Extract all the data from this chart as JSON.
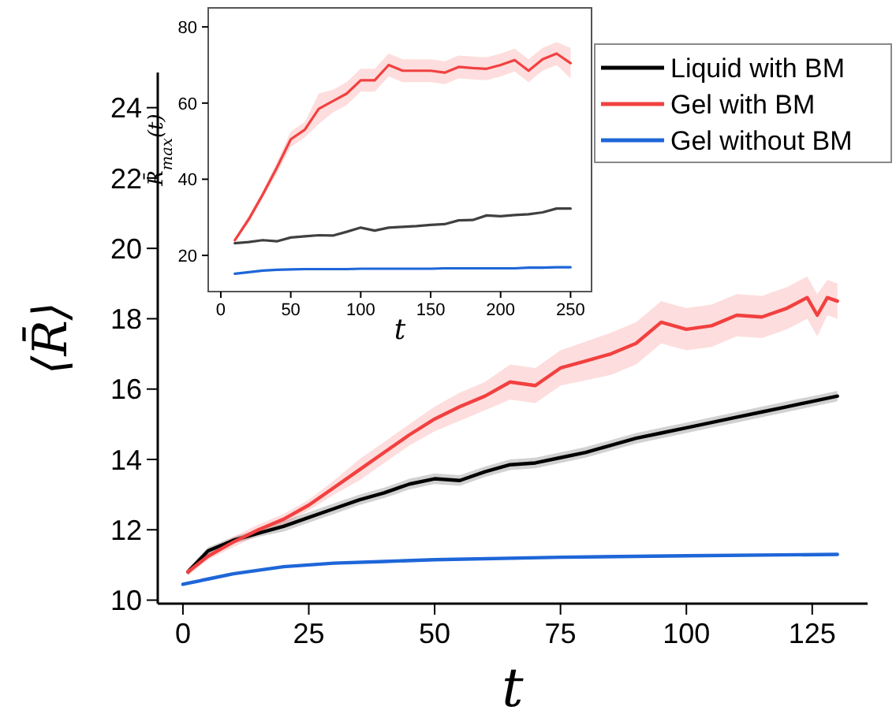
{
  "chart_data": [
    {
      "type": "line",
      "xlabel": "t",
      "ylabel": "⟨R̄⟩",
      "xlim": [
        -5,
        136
      ],
      "ylim": [
        9.9,
        25
      ],
      "xticks": [
        0,
        25,
        50,
        75,
        100,
        125
      ],
      "yticks": [
        10,
        12,
        14,
        16,
        18,
        20,
        22,
        24
      ],
      "legend": "top right",
      "grid": false,
      "marker": "none",
      "line_style": "solid",
      "series": [
        {
          "name": "Liquid with BM",
          "color": "#000000",
          "x": [
            1,
            5,
            10,
            15,
            20,
            25,
            30,
            35,
            40,
            45,
            50,
            55,
            60,
            65,
            70,
            75,
            80,
            85,
            90,
            95,
            100,
            105,
            110,
            115,
            120,
            125,
            130
          ],
          "values": [
            10.8,
            11.4,
            11.7,
            11.9,
            12.1,
            12.35,
            12.6,
            12.85,
            13.05,
            13.3,
            13.45,
            13.4,
            13.65,
            13.85,
            13.9,
            14.05,
            14.2,
            14.4,
            14.6,
            14.75,
            14.9,
            15.05,
            15.2,
            15.35,
            15.5,
            15.65,
            15.8
          ],
          "lower": [
            10.7,
            11.3,
            11.6,
            11.8,
            11.95,
            12.2,
            12.45,
            12.7,
            12.9,
            13.15,
            13.3,
            13.25,
            13.5,
            13.7,
            13.75,
            13.9,
            14.05,
            14.25,
            14.45,
            14.6,
            14.75,
            14.9,
            15.05,
            15.2,
            15.35,
            15.5,
            15.65
          ],
          "upper": [
            10.9,
            11.5,
            11.8,
            12.0,
            12.25,
            12.5,
            12.75,
            13.0,
            13.2,
            13.45,
            13.6,
            13.55,
            13.8,
            14.0,
            14.05,
            14.2,
            14.35,
            14.55,
            14.75,
            14.9,
            15.05,
            15.2,
            15.35,
            15.5,
            15.65,
            15.8,
            15.95
          ]
        },
        {
          "name": "Gel with BM",
          "color": "#f24040",
          "x": [
            1,
            5,
            10,
            15,
            20,
            25,
            30,
            35,
            40,
            45,
            50,
            55,
            60,
            65,
            70,
            75,
            80,
            85,
            90,
            95,
            100,
            105,
            110,
            115,
            120,
            124,
            126,
            128,
            130
          ],
          "values": [
            10.8,
            11.25,
            11.65,
            12.0,
            12.3,
            12.7,
            13.2,
            13.7,
            14.2,
            14.7,
            15.15,
            15.5,
            15.8,
            16.2,
            16.1,
            16.6,
            16.8,
            17.0,
            17.3,
            17.9,
            17.7,
            17.8,
            18.1,
            18.05,
            18.3,
            18.6,
            18.1,
            18.6,
            18.5
          ],
          "lower": [
            10.7,
            11.15,
            11.5,
            11.85,
            12.15,
            12.55,
            13.0,
            13.4,
            13.9,
            14.4,
            14.8,
            15.1,
            15.4,
            15.7,
            15.6,
            16.1,
            16.25,
            16.4,
            16.7,
            17.3,
            17.1,
            17.2,
            17.5,
            17.45,
            17.7,
            18.0,
            17.5,
            18.1,
            18.0
          ],
          "upper": [
            10.9,
            11.35,
            11.8,
            12.15,
            12.45,
            12.85,
            13.4,
            14.0,
            14.5,
            15.0,
            15.5,
            15.9,
            16.2,
            16.7,
            16.6,
            17.1,
            17.35,
            17.6,
            17.9,
            18.5,
            18.3,
            18.4,
            18.7,
            18.65,
            18.9,
            19.2,
            18.7,
            19.1,
            19.0
          ]
        },
        {
          "name": "Gel without BM",
          "color": "#1e66d8",
          "x": [
            0,
            5,
            10,
            15,
            20,
            30,
            40,
            50,
            75,
            100,
            130
          ],
          "values": [
            10.45,
            10.6,
            10.75,
            10.85,
            10.95,
            11.05,
            11.1,
            11.15,
            11.22,
            11.26,
            11.3
          ]
        }
      ]
    },
    {
      "type": "line",
      "xlabel": "t",
      "ylabel": "R̄$_{max}$(t)",
      "xlim": [
        -9,
        265
      ],
      "ylim": [
        10.5,
        85
      ],
      "xticks": [
        0,
        50,
        100,
        150,
        200,
        250
      ],
      "yticks": [
        20,
        40,
        60,
        80
      ],
      "legend": false,
      "grid": false,
      "marker": "none",
      "line_style": "solid",
      "series": [
        {
          "color": "#404040",
          "x": [
            10,
            20,
            30,
            40,
            50,
            60,
            70,
            80,
            90,
            100,
            110,
            120,
            130,
            140,
            150,
            160,
            170,
            180,
            190,
            200,
            210,
            220,
            230,
            240,
            250
          ],
          "values": [
            23.2,
            23.5,
            24,
            23.7,
            24.7,
            25,
            25.3,
            25.2,
            26.2,
            27.3,
            26.5,
            27.3,
            27.5,
            27.7,
            28,
            28.2,
            29.2,
            29.3,
            30.5,
            30.3,
            30.6,
            30.8,
            31.3,
            32.3,
            32.3
          ]
        },
        {
          "color": "#f24040",
          "x": [
            10,
            20,
            30,
            40,
            50,
            60,
            70,
            80,
            90,
            100,
            110,
            120,
            130,
            140,
            150,
            160,
            170,
            180,
            190,
            200,
            210,
            220,
            230,
            240,
            250
          ],
          "values": [
            24,
            29.5,
            36,
            43,
            50.5,
            53,
            58.5,
            60.5,
            62.5,
            66,
            66,
            70,
            68.5,
            68.5,
            68.5,
            68,
            69.5,
            69.2,
            69,
            70,
            71.3,
            68.5,
            71.5,
            73,
            70.5
          ],
          "lower": [
            23.5,
            28.5,
            35,
            41.5,
            48.5,
            51,
            54.5,
            57.5,
            59.5,
            63,
            63,
            67,
            65.5,
            65.5,
            65.5,
            65,
            66.5,
            66.2,
            66,
            67,
            68.3,
            65.5,
            68.5,
            70,
            66.5
          ],
          "upper": [
            24.5,
            30.5,
            37,
            44.5,
            52.5,
            55,
            62.5,
            63.5,
            65.5,
            69,
            69,
            73,
            71.5,
            71.5,
            71.5,
            71,
            72.5,
            72.2,
            72,
            73,
            74.3,
            71.5,
            74.5,
            76,
            74.5
          ]
        },
        {
          "color": "#1e66d8",
          "x": [
            10,
            20,
            30,
            40,
            50,
            60,
            70,
            80,
            90,
            100,
            110,
            120,
            130,
            140,
            150,
            160,
            170,
            180,
            190,
            200,
            210,
            220,
            230,
            240,
            250
          ],
          "values": [
            15.2,
            15.6,
            16,
            16.2,
            16.3,
            16.4,
            16.4,
            16.4,
            16.4,
            16.5,
            16.5,
            16.5,
            16.5,
            16.5,
            16.5,
            16.6,
            16.6,
            16.6,
            16.6,
            16.6,
            16.6,
            16.8,
            16.8,
            16.9,
            16.9
          ]
        }
      ]
    }
  ]
}
